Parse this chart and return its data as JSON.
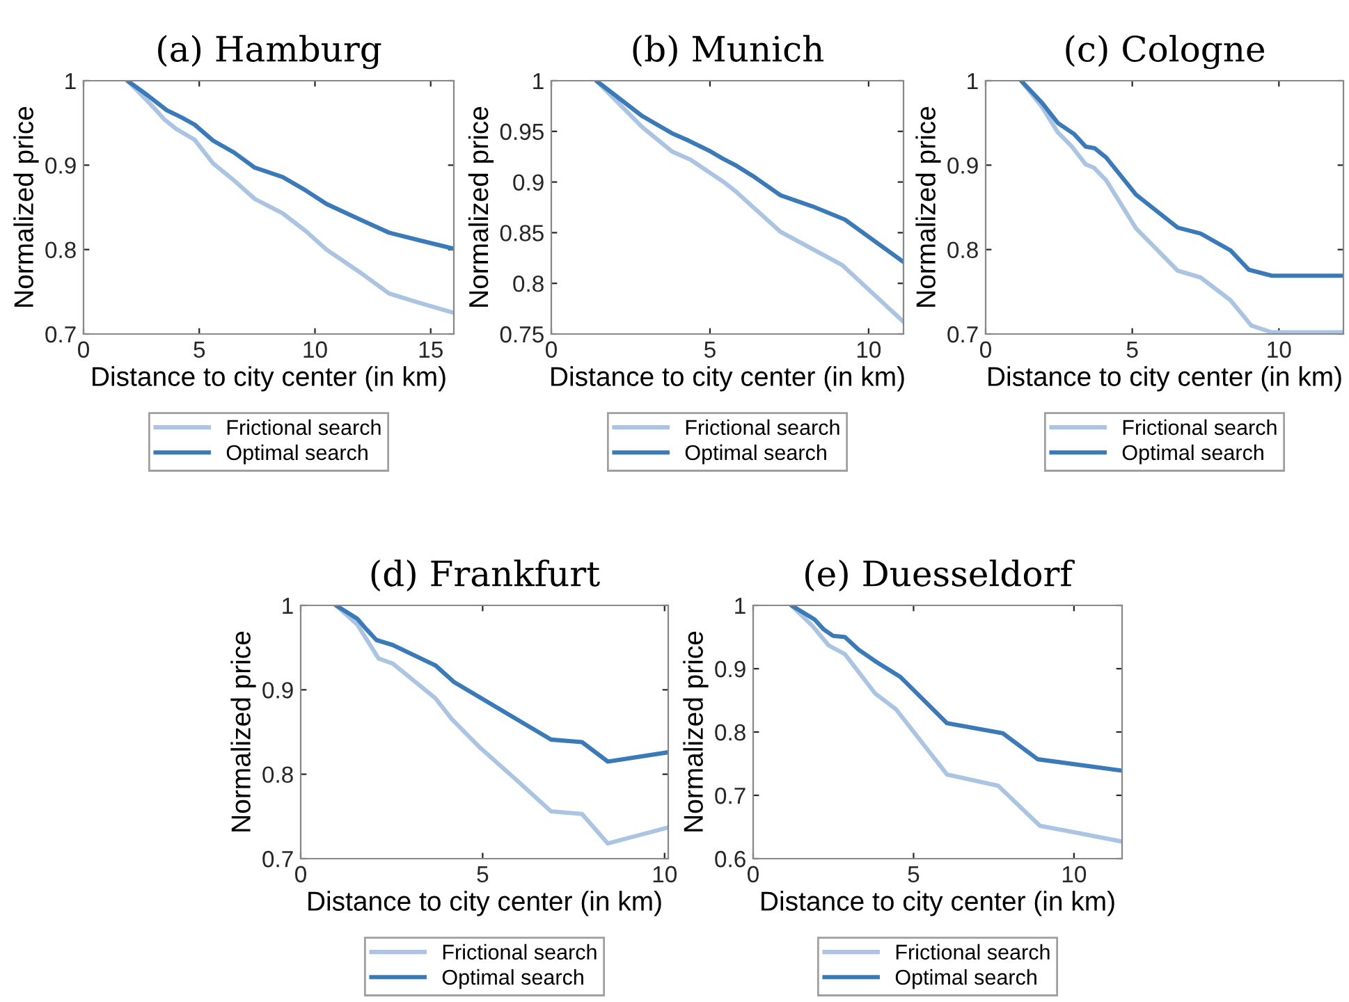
{
  "chart_data": [
    {
      "type": "line",
      "title": "(a) Hamburg",
      "xlabel": "Distance to city center (in km)",
      "ylabel": "Normalized price",
      "xlim": [
        0,
        16
      ],
      "xticks": [
        0,
        5,
        10,
        15
      ],
      "ylim": [
        0.7,
        1
      ],
      "yticks": [
        0.7,
        0.8,
        0.9,
        1
      ],
      "legend": "bottom",
      "grid": false,
      "series": [
        {
          "name": "Frictional search",
          "color": "#aac4e2",
          "x": [
            1.9,
            2.8,
            3.5,
            4.0,
            4.8,
            5.6,
            6.5,
            7.4,
            8.6,
            9.6,
            10.5,
            12.0,
            13.2,
            14.5,
            16.0
          ],
          "values": [
            1.0,
            0.975,
            0.954,
            0.943,
            0.93,
            0.902,
            0.882,
            0.86,
            0.843,
            0.822,
            0.8,
            0.772,
            0.748,
            0.737,
            0.725
          ]
        },
        {
          "name": "Optimal search",
          "color": "#3a7ab8",
          "x": [
            1.9,
            2.8,
            3.6,
            4.2,
            4.8,
            5.6,
            6.5,
            7.4,
            8.6,
            9.6,
            10.5,
            12.0,
            13.2,
            14.5,
            16.0
          ],
          "values": [
            1.0,
            0.982,
            0.965,
            0.957,
            0.948,
            0.929,
            0.915,
            0.897,
            0.886,
            0.87,
            0.854,
            0.835,
            0.82,
            0.811,
            0.801
          ]
        }
      ]
    },
    {
      "type": "line",
      "title": "(b) Munich",
      "xlabel": "Distance to city center (in km)",
      "ylabel": "Normalized price",
      "xlim": [
        0,
        11.1
      ],
      "xticks": [
        0,
        5,
        10
      ],
      "ylim": [
        0.75,
        1
      ],
      "yticks": [
        0.75,
        0.8,
        0.85,
        0.9,
        0.95,
        1
      ],
      "legend": "bottom",
      "grid": false,
      "series": [
        {
          "name": "Frictional search",
          "color": "#aac4e2",
          "x": [
            1.42,
            2.87,
            3.81,
            4.39,
            5.48,
            5.84,
            7.22,
            9.17,
            11.1
          ],
          "values": [
            1.0,
            0.954,
            0.93,
            0.922,
            0.899,
            0.89,
            0.851,
            0.818,
            0.762
          ]
        },
        {
          "name": "Optimal search",
          "color": "#3a7ab8",
          "x": [
            1.42,
            2.87,
            3.81,
            4.32,
            4.97,
            5.41,
            5.84,
            6.35,
            7.22,
            8.23,
            9.25,
            11.1
          ],
          "values": [
            1.0,
            0.965,
            0.948,
            0.941,
            0.931,
            0.923,
            0.916,
            0.906,
            0.887,
            0.876,
            0.863,
            0.821
          ]
        }
      ]
    },
    {
      "type": "line",
      "title": "(c) Cologne",
      "xlabel": "Distance to city center (in km)",
      "ylabel": "Normalized price",
      "xlim": [
        0,
        12.2
      ],
      "xticks": [
        0,
        5,
        10
      ],
      "ylim": [
        0.7,
        1
      ],
      "yticks": [
        0.7,
        0.8,
        0.9,
        1
      ],
      "legend": "bottom",
      "grid": false,
      "series": [
        {
          "name": "Frictional search",
          "color": "#aac4e2",
          "x": [
            1.21,
            1.92,
            2.46,
            2.94,
            3.41,
            3.69,
            4.11,
            5.13,
            6.55,
            7.33,
            8.35,
            9.06,
            9.76,
            12.2
          ],
          "values": [
            1.0,
            0.969,
            0.939,
            0.922,
            0.901,
            0.897,
            0.882,
            0.825,
            0.775,
            0.767,
            0.74,
            0.71,
            0.702,
            0.702
          ]
        },
        {
          "name": "Optimal search",
          "color": "#3a7ab8",
          "x": [
            1.21,
            1.92,
            2.46,
            3.01,
            3.41,
            3.72,
            4.11,
            5.13,
            6.55,
            7.33,
            8.35,
            8.98,
            9.76,
            12.2
          ],
          "values": [
            1.0,
            0.974,
            0.95,
            0.937,
            0.922,
            0.92,
            0.909,
            0.865,
            0.826,
            0.819,
            0.799,
            0.776,
            0.769,
            0.769
          ]
        }
      ]
    },
    {
      "type": "line",
      "title": "(d) Frankfurt",
      "xlabel": "Distance to city center (in km)",
      "ylabel": "Normalized price",
      "xlim": [
        0,
        10.1
      ],
      "xticks": [
        0,
        5,
        10
      ],
      "ylim": [
        0.7,
        1
      ],
      "yticks": [
        0.7,
        0.8,
        0.9,
        1
      ],
      "legend": "bottom",
      "grid": false,
      "series": [
        {
          "name": "Frictional search",
          "color": "#aac4e2",
          "x": [
            0.97,
            1.56,
            2.14,
            2.53,
            3.7,
            4.16,
            4.94,
            5.91,
            6.88,
            7.73,
            8.44,
            10.1
          ],
          "values": [
            1.0,
            0.977,
            0.937,
            0.931,
            0.89,
            0.865,
            0.831,
            0.794,
            0.756,
            0.753,
            0.718,
            0.737
          ]
        },
        {
          "name": "Optimal search",
          "color": "#3a7ab8",
          "x": [
            0.97,
            1.56,
            1.82,
            2.08,
            2.53,
            3.7,
            4.22,
            6.88,
            7.73,
            8.44,
            10.1
          ],
          "values": [
            1.0,
            0.984,
            0.971,
            0.959,
            0.953,
            0.929,
            0.909,
            0.841,
            0.838,
            0.815,
            0.826
          ]
        }
      ]
    },
    {
      "type": "line",
      "title": "(e) Duesseldorf",
      "xlabel": "Distance to city center (in km)",
      "ylabel": "Normalized price",
      "xlim": [
        0,
        11.5
      ],
      "xticks": [
        0,
        5,
        10
      ],
      "ylim": [
        0.6,
        1
      ],
      "yticks": [
        0.6,
        0.7,
        0.8,
        0.9,
        1
      ],
      "legend": "bottom",
      "grid": false,
      "series": [
        {
          "name": "Frictional search",
          "color": "#aac4e2",
          "x": [
            1.19,
            1.84,
            2.35,
            2.86,
            3.8,
            4.45,
            6.04,
            7.64,
            8.94,
            11.5
          ],
          "values": [
            1.0,
            0.968,
            0.937,
            0.923,
            0.861,
            0.836,
            0.733,
            0.715,
            0.652,
            0.627
          ]
        },
        {
          "name": "Optimal search",
          "color": "#3a7ab8",
          "x": [
            1.19,
            1.91,
            2.2,
            2.49,
            2.86,
            3.29,
            3.8,
            4.59,
            6.04,
            7.78,
            8.87,
            11.5
          ],
          "values": [
            1.0,
            0.978,
            0.962,
            0.952,
            0.95,
            0.93,
            0.912,
            0.887,
            0.814,
            0.798,
            0.757,
            0.739
          ]
        }
      ]
    }
  ]
}
